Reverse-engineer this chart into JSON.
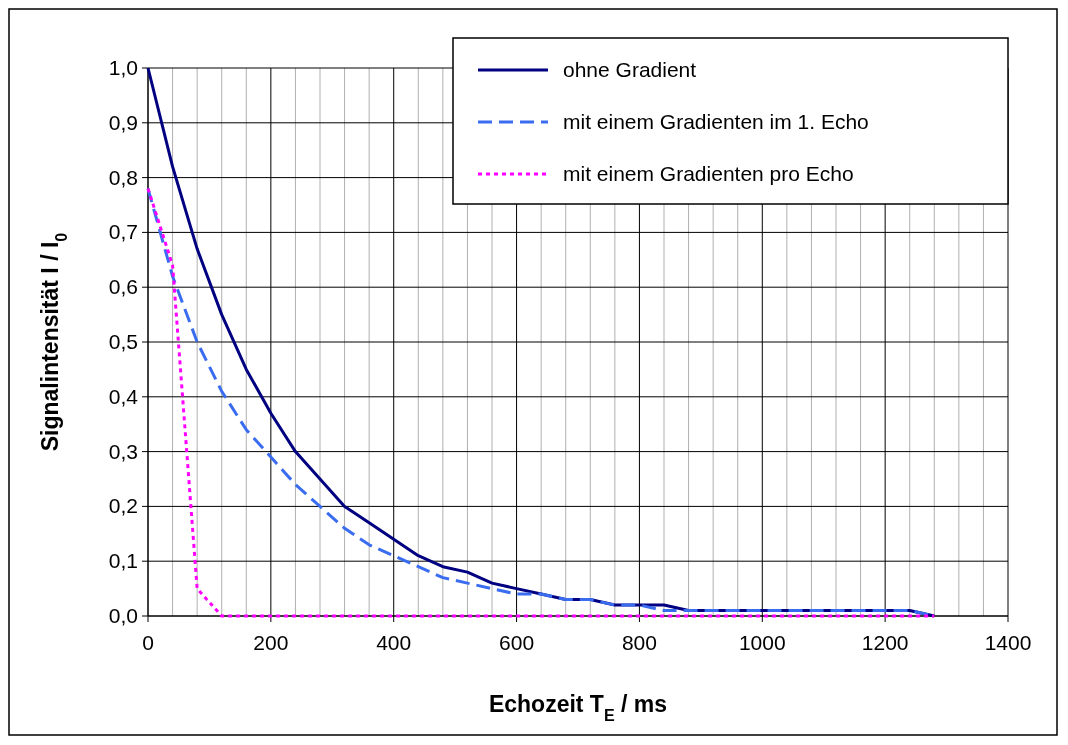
{
  "chart_data": {
    "type": "line",
    "xlabel": "Echozeit T$_{E}$ / ms",
    "ylabel": "Signalintensität I / I$_{0}$",
    "xlim": [
      0,
      1400
    ],
    "ylim": [
      0,
      1
    ],
    "xticks": [
      0,
      {
        "value": 40,
        "label": null
      },
      {
        "value": 80,
        "label": null
      },
      {
        "value": 120,
        "label": null
      },
      {
        "value": 160,
        "label": null
      },
      200,
      {
        "value": 240,
        "label": null
      },
      {
        "value": 280,
        "label": null
      },
      {
        "value": 320,
        "label": null
      },
      {
        "value": 360,
        "label": null
      },
      400,
      {
        "value": 440,
        "label": null
      },
      {
        "value": 480,
        "label": null
      },
      {
        "value": 520,
        "label": null
      },
      {
        "value": 560,
        "label": null
      },
      600,
      {
        "value": 640,
        "label": null
      },
      {
        "value": 680,
        "label": null
      },
      {
        "value": 720,
        "label": null
      },
      {
        "value": 760,
        "label": null
      },
      800,
      {
        "value": 840,
        "label": null
      },
      {
        "value": 880,
        "label": null
      },
      {
        "value": 920,
        "label": null
      },
      {
        "value": 960,
        "label": null
      },
      1000,
      {
        "value": 1040,
        "label": null
      },
      {
        "value": 1080,
        "label": null
      },
      {
        "value": 1120,
        "label": null
      },
      {
        "value": 1160,
        "label": null
      },
      1200,
      {
        "value": 1240,
        "label": null
      },
      {
        "value": 1280,
        "label": null
      },
      {
        "value": 1320,
        "label": null
      },
      {
        "value": 1360,
        "label": null
      },
      1400
    ],
    "yticks": [
      {
        "value": 0,
        "label": "0,0"
      },
      {
        "value": 0.1,
        "label": "0,1"
      },
      {
        "value": 0.2,
        "label": "0,2"
      },
      {
        "value": 0.3,
        "label": "0,3"
      },
      {
        "value": 0.4,
        "label": "0,4"
      },
      {
        "value": 0.5,
        "label": "0,5"
      },
      {
        "value": 0.6,
        "label": "0,6"
      },
      {
        "value": 0.7,
        "label": "0,7"
      },
      {
        "value": 0.8,
        "label": "0,8"
      },
      {
        "value": 0.9,
        "label": "0,9"
      },
      {
        "value": 1,
        "label": "1,0"
      }
    ],
    "x": [
      0,
      40,
      80,
      120,
      160,
      200,
      240,
      280,
      320,
      360,
      400,
      440,
      480,
      520,
      560,
      600,
      640,
      680,
      720,
      760,
      800,
      840,
      880,
      920,
      960,
      1000,
      1040,
      1080,
      1120,
      1160,
      1200,
      1240,
      1280
    ],
    "grid": true,
    "legend": "top right",
    "series": [
      {
        "name": "ohne Gradient",
        "color": "#000080",
        "line_style": "solid",
        "values": [
          1.0,
          0.82,
          0.67,
          0.55,
          0.45,
          0.37,
          0.3,
          0.25,
          0.2,
          0.17,
          0.14,
          0.11,
          0.09,
          0.08,
          0.06,
          0.05,
          0.04,
          0.03,
          0.03,
          0.02,
          0.02,
          0.02,
          0.01,
          0.01,
          0.01,
          0.01,
          0.01,
          0.01,
          0.01,
          0.01,
          0.01,
          0.01,
          0.0
        ]
      },
      {
        "name": "mit einem Gradienten im 1. Echo",
        "color": "#3a6cf0",
        "line_style": "dashed",
        "values": [
          0.78,
          0.62,
          0.5,
          0.41,
          0.34,
          0.29,
          0.24,
          0.2,
          0.16,
          0.13,
          0.11,
          0.09,
          0.07,
          0.06,
          0.05,
          0.04,
          0.04,
          0.03,
          0.03,
          0.02,
          0.02,
          0.01,
          0.01,
          0.01,
          0.01,
          0.01,
          0.01,
          0.01,
          0.01,
          0.01,
          0.01,
          0.01,
          0.0
        ]
      },
      {
        "name": "mit einem Gradienten pro Echo",
        "color": "#ff00ff",
        "line_style": "dotted",
        "values": [
          0.78,
          0.64,
          0.05,
          0.0,
          0.0,
          0.0,
          0.0,
          0.0,
          0.0,
          0.0,
          0.0,
          0.0,
          0.0,
          0.0,
          0.0,
          0.0,
          0.0,
          0.0,
          0.0,
          0.0,
          0.0,
          0.0,
          0.0,
          0.0,
          0.0,
          0.0,
          0.0,
          0.0,
          0.0,
          0.0,
          0.0,
          0.0,
          0.0
        ]
      }
    ]
  }
}
